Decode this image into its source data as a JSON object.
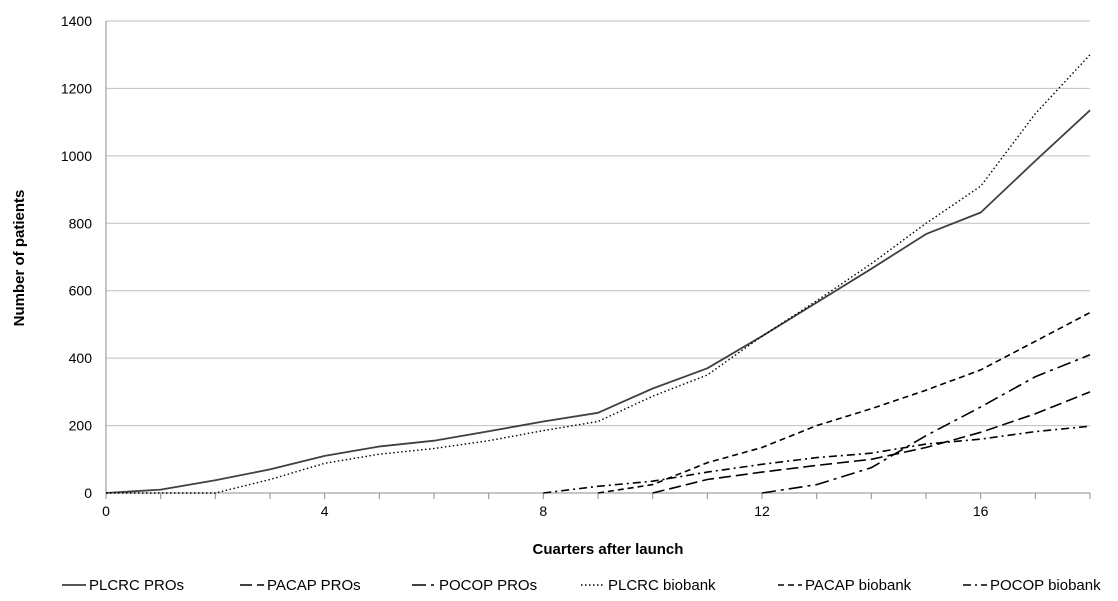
{
  "chart_data": {
    "type": "line",
    "title": "",
    "xlabel": "Cuarters after launch",
    "ylabel": "Number of patients",
    "xlim": [
      0,
      18
    ],
    "ylim": [
      0,
      1400
    ],
    "x_ticks": [
      0,
      4,
      8,
      12,
      16
    ],
    "y_ticks": [
      0,
      200,
      400,
      600,
      800,
      1000,
      1200,
      1400
    ],
    "grid": "horizontal",
    "legend_position": "bottom",
    "series": [
      {
        "name": "PLCRC PROs",
        "style": "solid",
        "color": "#404040",
        "x": [
          0,
          1,
          2,
          3,
          4,
          5,
          6,
          7,
          8,
          9,
          10,
          11,
          12,
          13,
          14,
          15,
          16,
          17,
          18
        ],
        "y": [
          0,
          10,
          38,
          70,
          110,
          138,
          155,
          183,
          212,
          238,
          310,
          370,
          465,
          565,
          665,
          768,
          832,
          985,
          1135
        ]
      },
      {
        "name": "PACAP PROs",
        "style": "longdash",
        "color": "#000000",
        "x": [
          10,
          11,
          12,
          13,
          14,
          15,
          16,
          17,
          18
        ],
        "y": [
          0,
          40,
          62,
          82,
          100,
          135,
          180,
          235,
          300
        ]
      },
      {
        "name": "POCOP PROs",
        "style": "longdashdot",
        "color": "#000000",
        "x": [
          12,
          13,
          14,
          15,
          16,
          17,
          18
        ],
        "y": [
          0,
          25,
          75,
          170,
          255,
          345,
          410
        ]
      },
      {
        "name": "PLCRC biobank",
        "style": "dotted",
        "color": "#000000",
        "x": [
          0,
          1,
          2,
          3,
          4,
          5,
          6,
          7,
          8,
          9,
          10,
          11,
          12,
          13,
          14,
          15,
          16,
          17,
          18
        ],
        "y": [
          0,
          0,
          0,
          40,
          88,
          115,
          132,
          155,
          185,
          212,
          287,
          350,
          465,
          570,
          680,
          800,
          910,
          1125,
          1300
        ]
      },
      {
        "name": "PACAP biobank",
        "style": "dashed",
        "color": "#000000",
        "x": [
          9,
          10,
          11,
          12,
          13,
          14,
          15,
          16,
          17,
          18
        ],
        "y": [
          0,
          25,
          90,
          135,
          200,
          250,
          305,
          365,
          450,
          535
        ]
      },
      {
        "name": "POCOP biobank",
        "style": "dashdot",
        "color": "#000000",
        "x": [
          8,
          9,
          10,
          11,
          12,
          13,
          14,
          15,
          16,
          17,
          18
        ],
        "y": [
          0,
          20,
          35,
          62,
          85,
          105,
          118,
          145,
          160,
          182,
          198
        ]
      }
    ]
  }
}
